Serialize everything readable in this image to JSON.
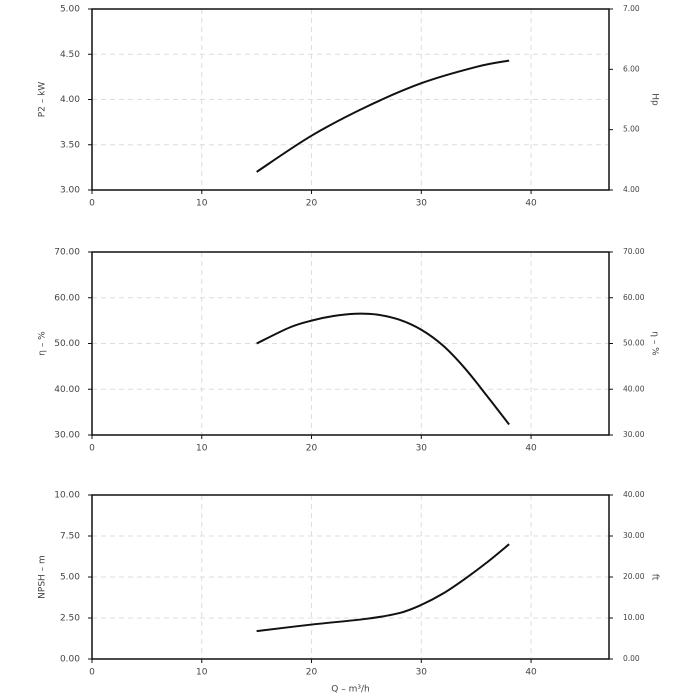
{
  "chart_data": [
    {
      "type": "line",
      "ylabel": "P2 – kW",
      "y2label": "Hp",
      "x": [
        15,
        20,
        25,
        30,
        35,
        38
      ],
      "values": [
        3.2,
        3.6,
        3.92,
        4.18,
        4.36,
        4.43
      ],
      "color": "#111111",
      "xlim": [
        0,
        47.1
      ],
      "xticks": [
        0,
        10,
        20,
        30,
        40
      ],
      "ylim": [
        3,
        5
      ],
      "yticks": [
        {
          "value": 3,
          "label": "3.00"
        },
        {
          "value": 3.5,
          "label": "3.50"
        },
        {
          "value": 4,
          "label": "4.00"
        },
        {
          "value": 4.5,
          "label": "4.50"
        },
        {
          "value": 5,
          "label": "5.00"
        }
      ],
      "y2lim": [
        4,
        7
      ],
      "y2ticks": [
        {
          "value": 4,
          "label": "4.00"
        },
        {
          "value": 5,
          "label": "5.00"
        },
        {
          "value": 6,
          "label": "6.00"
        },
        {
          "value": 7,
          "label": "7.00"
        }
      ],
      "grid": true
    },
    {
      "type": "line",
      "ylabel": "η – %",
      "y2label": "η – %",
      "x": [
        15,
        18,
        20,
        22,
        24,
        26,
        28,
        30,
        32,
        34,
        36,
        38
      ],
      "values": [
        50,
        53.5,
        55,
        56,
        56.5,
        56.3,
        55.2,
        53,
        49.5,
        44.5,
        38.5,
        32.3
      ],
      "color": "#111111",
      "xlim": [
        0,
        47.1
      ],
      "xticks": [
        0,
        10,
        20,
        30,
        40
      ],
      "ylim": [
        30,
        70
      ],
      "yticks": [
        {
          "value": 30,
          "label": "30.00"
        },
        {
          "value": 40,
          "label": "40.00"
        },
        {
          "value": 50,
          "label": "50.00"
        },
        {
          "value": 60,
          "label": "60.00"
        },
        {
          "value": 70,
          "label": "70.00"
        }
      ],
      "y2lim": [
        30,
        70
      ],
      "y2ticks": [
        {
          "value": 30,
          "label": "30.00"
        },
        {
          "value": 40,
          "label": "40.00"
        },
        {
          "value": 50,
          "label": "50.00"
        },
        {
          "value": 60,
          "label": "60.00"
        },
        {
          "value": 70,
          "label": "70.00"
        }
      ],
      "grid": true
    },
    {
      "type": "line",
      "ylabel": "NPSH – m",
      "y2label": "ft",
      "xlabel": "Q – m³/h",
      "x": [
        15,
        20,
        25,
        28,
        30,
        32,
        34,
        36,
        38
      ],
      "values": [
        1.7,
        2.1,
        2.45,
        2.8,
        3.3,
        4,
        4.9,
        5.9,
        7
      ],
      "color": "#111111",
      "xlim": [
        0,
        47.1
      ],
      "xticks": [
        0,
        10,
        20,
        30,
        40
      ],
      "ylim": [
        0,
        10
      ],
      "yticks": [
        {
          "value": 0,
          "label": "0.00"
        },
        {
          "value": 2.5,
          "label": "2.50"
        },
        {
          "value": 5,
          "label": "5.00"
        },
        {
          "value": 7.5,
          "label": "7.50"
        },
        {
          "value": 10,
          "label": "10.00"
        }
      ],
      "y2lim": [
        0,
        40
      ],
      "y2ticks": [
        {
          "value": 0,
          "label": "0.00"
        },
        {
          "value": 10,
          "label": "10.00"
        },
        {
          "value": 20,
          "label": "20.00"
        },
        {
          "value": 30,
          "label": "30.00"
        },
        {
          "value": 40,
          "label": "40.00"
        }
      ],
      "grid": true
    }
  ]
}
